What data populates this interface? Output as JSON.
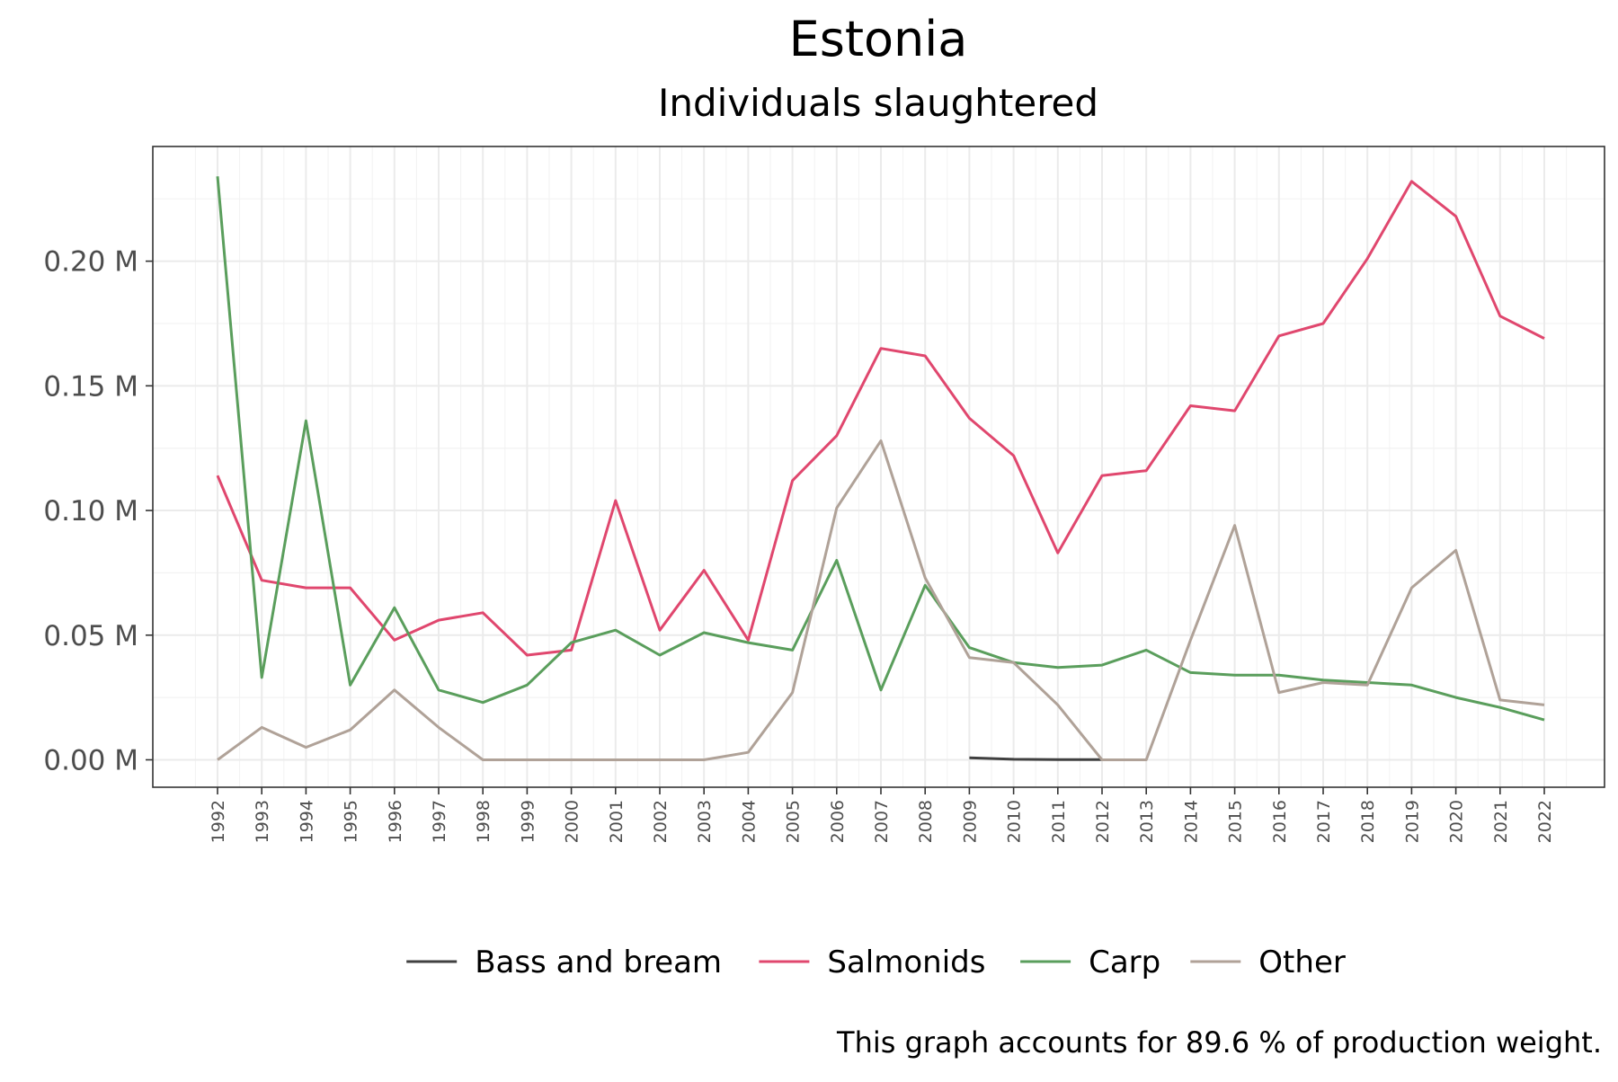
{
  "chart_data": {
    "type": "line",
    "title": "Estonia",
    "subtitle": "Individuals slaughtered",
    "caption": "This graph accounts for 89.6 % of production weight.",
    "ylim": [
      -0.011,
      0.246
    ],
    "y_ticks": [
      {
        "value": 0.0,
        "label": "0.00 M"
      },
      {
        "value": 0.05,
        "label": "0.05 M"
      },
      {
        "value": 0.1,
        "label": "0.10 M"
      },
      {
        "value": 0.15,
        "label": "0.15 M"
      },
      {
        "value": 0.2,
        "label": "0.20 M"
      }
    ],
    "x": [
      1992,
      1993,
      1994,
      1995,
      1996,
      1997,
      1998,
      1999,
      2000,
      2001,
      2002,
      2003,
      2004,
      2005,
      2006,
      2007,
      2008,
      2009,
      2010,
      2011,
      2012,
      2013,
      2014,
      2015,
      2016,
      2017,
      2018,
      2019,
      2020,
      2021,
      2022
    ],
    "x_labels": [
      "1992",
      "1993",
      "1994",
      "1995",
      "1996",
      "1997",
      "1998",
      "1999",
      "2000",
      "2001",
      "2002",
      "2003",
      "2004",
      "2005",
      "2006",
      "2007",
      "2008",
      "2009",
      "2010",
      "2011",
      "2012",
      "2013",
      "2014",
      "2015",
      "2016",
      "2017",
      "2018",
      "2019",
      "2020",
      "2021",
      "2022"
    ],
    "grid": true,
    "legend_position": "bottom",
    "series": [
      {
        "name": "Bass and bream",
        "color": "#404040",
        "values": [
          null,
          null,
          null,
          null,
          null,
          null,
          null,
          null,
          null,
          null,
          null,
          null,
          null,
          null,
          null,
          null,
          null,
          0.0008,
          0.0002,
          0.0001,
          0.0001,
          null,
          null,
          null,
          null,
          null,
          null,
          null,
          null,
          null,
          null
        ]
      },
      {
        "name": "Salmonids",
        "color": "#e0476e",
        "values": [
          0.114,
          0.072,
          0.069,
          0.069,
          0.048,
          0.056,
          0.059,
          0.042,
          0.044,
          0.104,
          0.052,
          0.076,
          0.048,
          0.112,
          0.13,
          0.165,
          0.162,
          0.137,
          0.122,
          0.083,
          0.114,
          0.116,
          0.142,
          0.14,
          0.17,
          0.175,
          0.201,
          0.232,
          0.218,
          0.178,
          0.169
        ]
      },
      {
        "name": "Carp",
        "color": "#5a9e5c",
        "values": [
          0.234,
          0.033,
          0.136,
          0.03,
          0.061,
          0.028,
          0.023,
          0.03,
          0.047,
          0.052,
          0.042,
          0.051,
          0.047,
          0.044,
          0.08,
          0.028,
          0.07,
          0.045,
          0.039,
          0.037,
          0.038,
          0.044,
          0.035,
          0.034,
          0.034,
          0.032,
          0.031,
          0.03,
          0.025,
          0.021,
          0.016
        ]
      },
      {
        "name": "Other",
        "color": "#b0a298",
        "values": [
          0.0,
          0.013,
          0.005,
          0.012,
          0.028,
          0.013,
          0.0,
          0.0,
          0.0,
          0.0,
          0.0,
          0.0,
          0.003,
          0.027,
          0.101,
          0.128,
          0.073,
          0.041,
          0.039,
          0.022,
          0.0,
          0.0,
          0.048,
          0.094,
          0.027,
          0.031,
          0.03,
          0.069,
          0.084,
          0.024,
          0.022
        ]
      }
    ]
  }
}
